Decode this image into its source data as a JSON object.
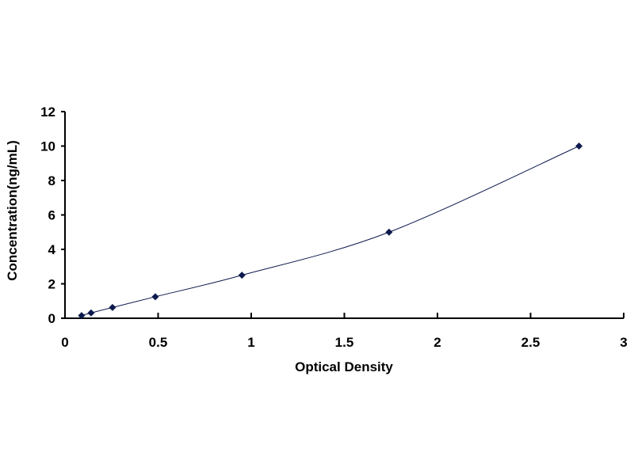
{
  "chart_data": {
    "type": "scatter",
    "title": "",
    "xlabel": "Optical Density",
    "ylabel": "Concentration(ng/mL)",
    "xlim": [
      0,
      3
    ],
    "ylim": [
      0,
      12
    ],
    "xticks": [
      "0",
      "0.5",
      "1",
      "1.5",
      "2",
      "2.5",
      "3"
    ],
    "yticks": [
      "0",
      "2",
      "4",
      "6",
      "8",
      "10",
      "12"
    ],
    "grid": false,
    "trendline": "smooth curve",
    "series": [
      {
        "x": [
          0.089,
          0.14,
          0.255,
          0.485,
          0.95,
          1.74,
          2.76
        ],
        "y": [
          0.156,
          0.312,
          0.625,
          1.25,
          2.5,
          5,
          10
        ]
      }
    ],
    "colors": {
      "marker": "#0d1a4d",
      "line": "#0d1a4d"
    }
  }
}
